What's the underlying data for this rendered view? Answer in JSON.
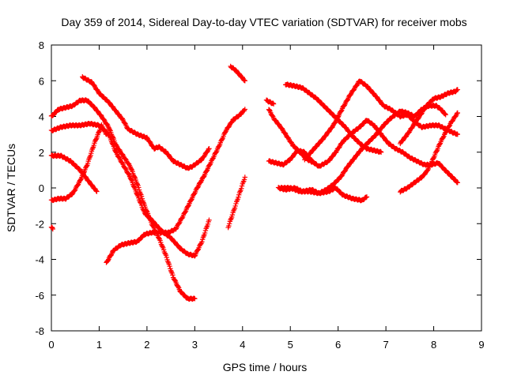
{
  "chart_data": {
    "type": "scatter",
    "title": "Day 359 of 2014, Sidereal Day-to-day VTEC variation (SDTVAR) for receiver mobs",
    "xlabel": "GPS time / hours",
    "ylabel": "SDTVAR / TECUs",
    "xlim": [
      0,
      9
    ],
    "ylim": [
      -8,
      8
    ],
    "x_ticks": [
      0,
      1,
      2,
      3,
      4,
      5,
      6,
      7,
      8,
      9
    ],
    "y_ticks": [
      -8,
      -6,
      -4,
      -2,
      0,
      2,
      4,
      6,
      8
    ],
    "x_tick_labels": [
      "0",
      "1",
      "2",
      "3",
      "4",
      "5",
      "6",
      "7",
      "8",
      "9"
    ],
    "y_tick_labels": [
      "-8",
      "-6",
      "-4",
      "-2",
      "0",
      "2",
      "4",
      "6",
      "8"
    ],
    "grid": false,
    "legend": "none",
    "marker": "plus",
    "marker_color": "#ff0000",
    "series": [
      {
        "points": [
          [
            0.0,
            -2.2
          ],
          [
            0.03,
            -2.3
          ]
        ]
      },
      {
        "points": [
          [
            0.0,
            1.8
          ],
          [
            0.2,
            1.8
          ],
          [
            0.4,
            1.5
          ],
          [
            0.6,
            1.0
          ],
          [
            0.8,
            0.3
          ],
          [
            0.95,
            -0.2
          ]
        ]
      },
      {
        "points": [
          [
            0.0,
            -0.7
          ],
          [
            0.15,
            -0.6
          ],
          [
            0.3,
            -0.6
          ],
          [
            0.45,
            -0.3
          ],
          [
            0.6,
            0.4
          ],
          [
            0.75,
            1.3
          ],
          [
            0.9,
            2.5
          ],
          [
            1.05,
            3.5
          ],
          [
            1.15,
            3.0
          ]
        ]
      },
      {
        "points": [
          [
            0.0,
            4.0
          ],
          [
            0.15,
            4.4
          ],
          [
            0.3,
            4.5
          ],
          [
            0.45,
            4.6
          ],
          [
            0.6,
            4.9
          ],
          [
            0.75,
            4.9
          ],
          [
            0.9,
            4.5
          ],
          [
            1.05,
            4.0
          ],
          [
            1.2,
            3.4
          ],
          [
            1.35,
            2.4
          ],
          [
            1.5,
            1.8
          ],
          [
            1.65,
            1.2
          ],
          [
            1.8,
            0.2
          ],
          [
            1.95,
            -1.0
          ],
          [
            2.1,
            -2.0
          ],
          [
            2.25,
            -2.8
          ],
          [
            2.4,
            -3.8
          ],
          [
            2.55,
            -5.0
          ],
          [
            2.7,
            -5.8
          ],
          [
            2.85,
            -6.2
          ],
          [
            3.0,
            -6.2
          ]
        ]
      },
      {
        "points": [
          [
            0.0,
            3.2
          ],
          [
            0.2,
            3.4
          ],
          [
            0.4,
            3.5
          ],
          [
            0.6,
            3.5
          ],
          [
            0.8,
            3.6
          ],
          [
            1.0,
            3.5
          ],
          [
            1.2,
            3.0
          ],
          [
            1.35,
            2.0
          ],
          [
            1.5,
            1.3
          ],
          [
            1.65,
            0.6
          ],
          [
            1.8,
            -0.4
          ],
          [
            1.95,
            -1.4
          ],
          [
            2.1,
            -1.8
          ],
          [
            2.3,
            -2.4
          ],
          [
            2.5,
            -2.8
          ],
          [
            2.7,
            -3.4
          ],
          [
            2.85,
            -3.7
          ],
          [
            3.0,
            -3.8
          ],
          [
            3.15,
            -3.0
          ],
          [
            3.3,
            -1.8
          ]
        ]
      },
      {
        "points": [
          [
            0.65,
            6.2
          ],
          [
            0.85,
            5.9
          ],
          [
            1.0,
            5.3
          ],
          [
            1.2,
            4.8
          ],
          [
            1.35,
            4.3
          ],
          [
            1.5,
            3.8
          ],
          [
            1.6,
            3.3
          ],
          [
            1.8,
            3.0
          ],
          [
            2.0,
            2.8
          ],
          [
            2.15,
            2.2
          ],
          [
            2.25,
            2.3
          ],
          [
            2.4,
            2.0
          ],
          [
            2.55,
            1.5
          ],
          [
            2.7,
            1.3
          ],
          [
            2.85,
            1.1
          ],
          [
            2.95,
            1.2
          ],
          [
            3.0,
            1.3
          ],
          [
            3.15,
            1.6
          ],
          [
            3.3,
            2.2
          ]
        ]
      },
      {
        "points": [
          [
            1.15,
            -4.2
          ],
          [
            1.3,
            -3.5
          ],
          [
            1.45,
            -3.2
          ],
          [
            1.6,
            -3.1
          ],
          [
            1.8,
            -3.0
          ],
          [
            1.95,
            -2.6
          ],
          [
            2.1,
            -2.5
          ],
          [
            2.3,
            -2.5
          ],
          [
            2.45,
            -2.5
          ],
          [
            2.6,
            -2.3
          ],
          [
            2.75,
            -1.6
          ],
          [
            2.9,
            -0.8
          ],
          [
            3.05,
            0.0
          ],
          [
            3.2,
            0.7
          ],
          [
            3.35,
            1.5
          ],
          [
            3.5,
            2.3
          ],
          [
            3.65,
            3.2
          ],
          [
            3.8,
            3.8
          ],
          [
            3.95,
            4.1
          ],
          [
            4.05,
            4.4
          ]
        ]
      },
      {
        "points": [
          [
            3.7,
            -2.2
          ],
          [
            3.8,
            -1.4
          ],
          [
            3.9,
            -0.6
          ],
          [
            4.0,
            0.2
          ],
          [
            4.05,
            0.6
          ]
        ]
      },
      {
        "points": [
          [
            3.75,
            6.8
          ],
          [
            3.85,
            6.6
          ],
          [
            3.95,
            6.3
          ],
          [
            4.05,
            6.0
          ]
        ]
      },
      {
        "points": [
          [
            4.5,
            4.9
          ],
          [
            4.65,
            4.7
          ]
        ]
      },
      {
        "points": [
          [
            4.55,
            4.4
          ],
          [
            4.65,
            3.9
          ],
          [
            4.8,
            3.4
          ],
          [
            4.95,
            2.8
          ],
          [
            5.05,
            2.4
          ],
          [
            5.2,
            2.0
          ],
          [
            5.35,
            1.6
          ],
          [
            5.5,
            1.4
          ]
        ]
      },
      {
        "points": [
          [
            4.55,
            1.5
          ],
          [
            4.7,
            1.4
          ],
          [
            4.85,
            1.3
          ],
          [
            5.0,
            1.6
          ],
          [
            5.15,
            2.1
          ],
          [
            5.3,
            2.0
          ],
          [
            5.45,
            1.5
          ],
          [
            5.6,
            1.2
          ],
          [
            5.8,
            1.5
          ],
          [
            5.95,
            2.0
          ],
          [
            6.1,
            2.6
          ],
          [
            6.3,
            3.1
          ],
          [
            6.45,
            3.4
          ],
          [
            6.6,
            3.8
          ],
          [
            6.75,
            3.5
          ],
          [
            6.9,
            3.0
          ],
          [
            7.05,
            2.5
          ],
          [
            7.2,
            2.2
          ],
          [
            7.35,
            2.0
          ],
          [
            7.5,
            1.7
          ],
          [
            7.65,
            1.5
          ],
          [
            7.8,
            1.3
          ],
          [
            7.95,
            1.3
          ],
          [
            8.1,
            1.4
          ],
          [
            8.2,
            1.1
          ],
          [
            8.35,
            0.7
          ],
          [
            8.5,
            0.3
          ]
        ]
      },
      {
        "points": [
          [
            4.75,
            0.0
          ],
          [
            4.9,
            -0.1
          ],
          [
            5.1,
            0.0
          ],
          [
            5.25,
            -0.2
          ],
          [
            5.45,
            -0.1
          ],
          [
            5.6,
            -0.3
          ],
          [
            5.8,
            -0.2
          ],
          [
            5.95,
            0.0
          ],
          [
            6.1,
            -0.4
          ],
          [
            6.3,
            -0.6
          ],
          [
            6.5,
            -0.7
          ],
          [
            6.6,
            -0.5
          ]
        ]
      },
      {
        "points": [
          [
            4.8,
            0.0
          ],
          [
            5.0,
            0.0
          ],
          [
            5.2,
            -0.2
          ],
          [
            5.4,
            -0.2
          ],
          [
            5.6,
            -0.3
          ],
          [
            5.75,
            -0.1
          ],
          [
            5.9,
            0.2
          ],
          [
            6.05,
            0.6
          ],
          [
            6.2,
            1.2
          ],
          [
            6.35,
            1.7
          ],
          [
            6.5,
            2.2
          ],
          [
            6.65,
            2.6
          ],
          [
            6.8,
            3.0
          ],
          [
            6.95,
            3.5
          ],
          [
            7.1,
            3.9
          ],
          [
            7.3,
            4.3
          ],
          [
            7.45,
            4.2
          ],
          [
            7.6,
            4.0
          ],
          [
            7.75,
            4.4
          ],
          [
            7.9,
            4.6
          ],
          [
            8.05,
            4.6
          ],
          [
            8.15,
            4.4
          ],
          [
            8.25,
            4.1
          ]
        ]
      },
      {
        "points": [
          [
            4.9,
            5.8
          ],
          [
            5.1,
            5.7
          ],
          [
            5.25,
            5.6
          ],
          [
            5.4,
            5.3
          ],
          [
            5.55,
            5.0
          ],
          [
            5.7,
            4.6
          ],
          [
            5.85,
            4.2
          ],
          [
            6.0,
            3.8
          ],
          [
            6.15,
            3.4
          ],
          [
            6.3,
            2.9
          ],
          [
            6.45,
            2.5
          ],
          [
            6.6,
            2.2
          ],
          [
            6.75,
            2.1
          ],
          [
            6.9,
            2.0
          ]
        ]
      },
      {
        "points": [
          [
            5.3,
            1.6
          ],
          [
            5.5,
            2.2
          ],
          [
            5.7,
            2.8
          ],
          [
            5.9,
            3.5
          ],
          [
            6.1,
            4.5
          ],
          [
            6.25,
            5.2
          ],
          [
            6.45,
            6.0
          ],
          [
            6.6,
            5.7
          ],
          [
            6.8,
            5.1
          ],
          [
            6.95,
            4.6
          ],
          [
            7.1,
            4.4
          ],
          [
            7.3,
            4.0
          ],
          [
            7.45,
            4.1
          ],
          [
            7.6,
            3.7
          ],
          [
            7.75,
            3.4
          ],
          [
            7.95,
            3.5
          ],
          [
            8.1,
            3.5
          ],
          [
            8.25,
            3.3
          ],
          [
            8.4,
            3.1
          ],
          [
            8.5,
            3.0
          ]
        ]
      },
      {
        "points": [
          [
            7.3,
            -0.2
          ],
          [
            7.45,
            0.0
          ],
          [
            7.6,
            0.3
          ],
          [
            7.75,
            0.6
          ],
          [
            7.85,
            0.9
          ],
          [
            7.95,
            1.4
          ],
          [
            8.05,
            2.0
          ],
          [
            8.15,
            2.6
          ],
          [
            8.25,
            3.1
          ],
          [
            8.35,
            3.6
          ],
          [
            8.45,
            4.0
          ],
          [
            8.5,
            4.2
          ]
        ]
      },
      {
        "points": [
          [
            7.3,
            2.5
          ],
          [
            7.45,
            3.0
          ],
          [
            7.6,
            3.6
          ],
          [
            7.75,
            4.2
          ],
          [
            7.85,
            4.6
          ],
          [
            8.0,
            5.0
          ],
          [
            8.15,
            5.1
          ],
          [
            8.3,
            5.3
          ],
          [
            8.45,
            5.4
          ],
          [
            8.5,
            5.5
          ]
        ]
      }
    ]
  }
}
